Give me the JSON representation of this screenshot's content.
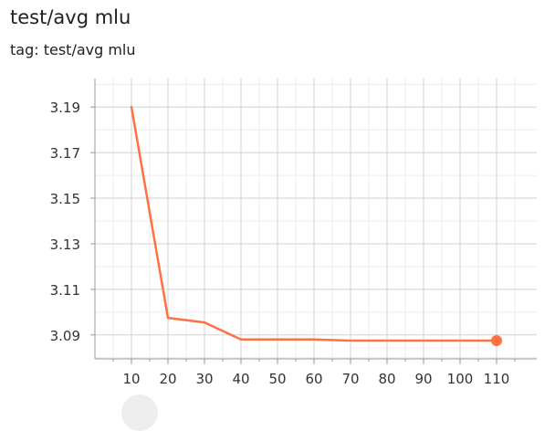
{
  "card": {
    "title": "test/avg mlu",
    "tag": "tag: test/avg mlu"
  },
  "colors": {
    "series": "#ff7043",
    "grid_major": "#d0d0d0",
    "grid_minor": "#ececec",
    "axis": "#999999"
  },
  "chart_data": {
    "type": "line",
    "title": "test/avg mlu",
    "xlabel": "",
    "ylabel": "",
    "x_ticks": [
      10,
      20,
      30,
      40,
      50,
      60,
      70,
      80,
      90,
      100,
      110
    ],
    "y_ticks": [
      3.09,
      3.11,
      3.13,
      3.15,
      3.17,
      3.19
    ],
    "y_tick_labels": [
      "3.09",
      "3.11",
      "3.13",
      "3.15",
      "3.17",
      "3.19"
    ],
    "xlim": [
      0,
      121
    ],
    "ylim": [
      3.0795,
      3.2025
    ],
    "grid": true,
    "series": [
      {
        "x": [
          10,
          20,
          30,
          40,
          50,
          60,
          70,
          80,
          90,
          100,
          110
        ],
        "values": [
          3.19,
          3.0975,
          3.0955,
          3.088,
          3.088,
          3.088,
          3.0875,
          3.0875,
          3.0875,
          3.0875,
          3.0875
        ],
        "color": "#ff7043"
      }
    ]
  }
}
